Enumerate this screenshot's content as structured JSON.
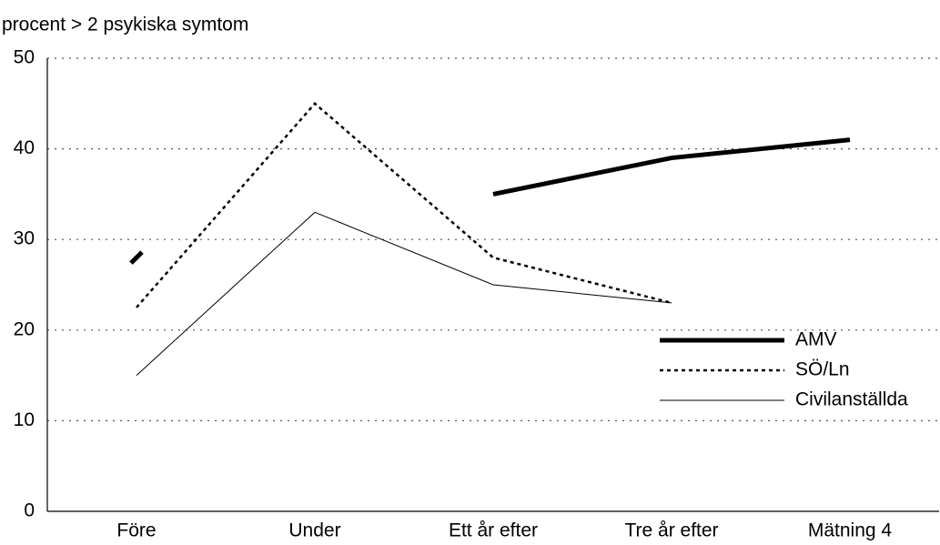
{
  "chart_data": {
    "type": "line",
    "y_label": "procent > 2 psykiska symtom",
    "categories": [
      "Före",
      "Under",
      "Ett år efter",
      "Tre år efter",
      "Mätning 4"
    ],
    "series": [
      {
        "name": "AMV",
        "color": "#000000",
        "width": 5,
        "dash": "solid",
        "values": [
          28,
          null,
          35,
          39,
          41
        ]
      },
      {
        "name": "SÖ/Ln",
        "color": "#000000",
        "width": 2.5,
        "dash": "dotted",
        "values": [
          22.5,
          45,
          28,
          23,
          null
        ]
      },
      {
        "name": "Civilanställda",
        "color": "#000000",
        "width": 1,
        "dash": "solid",
        "values": [
          15,
          33,
          25,
          23,
          null
        ]
      }
    ],
    "ylim": [
      0,
      50
    ],
    "yticks": [
      0,
      10,
      20,
      30,
      40,
      50
    ],
    "grid": true,
    "legend": "lower right"
  }
}
